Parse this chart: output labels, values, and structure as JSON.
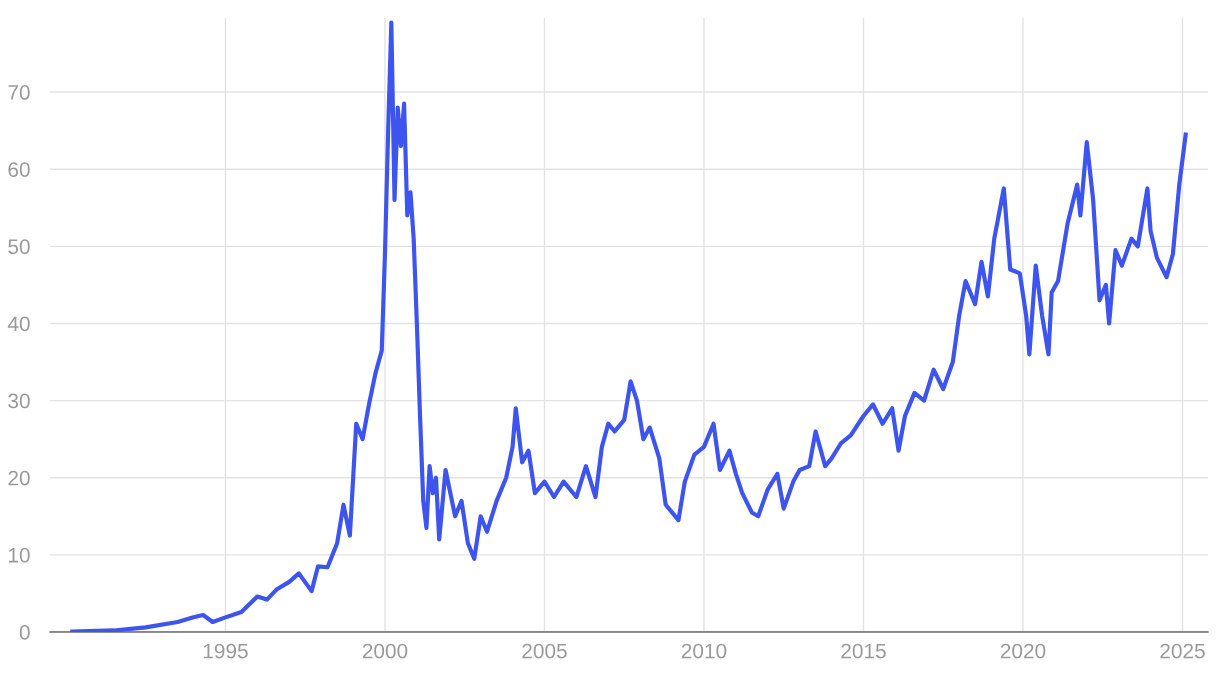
{
  "chart_data": {
    "type": "line",
    "grid": true,
    "xlim": [
      1989.5,
      2025.8
    ],
    "ylim": [
      0,
      79.6
    ],
    "xticks": [
      1995,
      2000,
      2005,
      2010,
      2015,
      2020,
      2025
    ],
    "yticks": [
      0,
      10,
      20,
      30,
      40,
      50,
      60,
      70
    ],
    "marker": "none",
    "line_style": "solid",
    "series": [
      {
        "color": "#3d55ee",
        "x": [
          1990.2,
          1991.5,
          1992.5,
          1993.5,
          1994.0,
          1994.3,
          1994.6,
          1995.0,
          1995.5,
          1996.0,
          1996.3,
          1996.6,
          1997.0,
          1997.3,
          1997.7,
          1997.9,
          1998.2,
          1998.5,
          1998.7,
          1998.9,
          1999.1,
          1999.3,
          1999.5,
          1999.7,
          1999.9,
          2000.0,
          2000.1,
          2000.2,
          2000.3,
          2000.4,
          2000.5,
          2000.6,
          2000.7,
          2000.8,
          2000.9,
          2001.0,
          2001.1,
          2001.2,
          2001.3,
          2001.4,
          2001.5,
          2001.6,
          2001.7,
          2001.9,
          2002.2,
          2002.4,
          2002.6,
          2002.8,
          2003.0,
          2003.2,
          2003.5,
          2003.8,
          2004.0,
          2004.1,
          2004.3,
          2004.5,
          2004.7,
          2005.0,
          2005.3,
          2005.6,
          2006.0,
          2006.3,
          2006.6,
          2006.8,
          2007.0,
          2007.2,
          2007.5,
          2007.7,
          2007.9,
          2008.1,
          2008.3,
          2008.6,
          2008.8,
          2009.0,
          2009.2,
          2009.4,
          2009.7,
          2010.0,
          2010.3,
          2010.5,
          2010.8,
          2011.0,
          2011.2,
          2011.5,
          2011.7,
          2012.0,
          2012.3,
          2012.5,
          2012.8,
          2013.0,
          2013.3,
          2013.5,
          2013.8,
          2014.0,
          2014.3,
          2014.6,
          2015.0,
          2015.3,
          2015.6,
          2015.9,
          2016.1,
          2016.3,
          2016.6,
          2016.9,
          2017.2,
          2017.5,
          2017.8,
          2018.0,
          2018.2,
          2018.5,
          2018.7,
          2018.9,
          2019.1,
          2019.4,
          2019.6,
          2019.9,
          2020.1,
          2020.2,
          2020.4,
          2020.6,
          2020.8,
          2020.9,
          2021.1,
          2021.4,
          2021.7,
          2021.8,
          2022.0,
          2022.2,
          2022.4,
          2022.6,
          2022.7,
          2022.9,
          2023.1,
          2023.4,
          2023.6,
          2023.9,
          2024.0,
          2024.2,
          2024.5,
          2024.7,
          2024.9,
          2025.1
        ],
        "values": [
          0.05,
          0.2,
          0.6,
          1.3,
          1.9,
          2.2,
          1.3,
          1.9,
          2.6,
          4.6,
          4.2,
          5.5,
          6.5,
          7.6,
          5.3,
          8.5,
          8.4,
          11.5,
          16.5,
          12.5,
          27.0,
          25.0,
          29.5,
          33.5,
          36.5,
          49.0,
          65.0,
          79.0,
          56.0,
          68.0,
          63.0,
          68.5,
          54.0,
          57.0,
          51.0,
          40.0,
          28.0,
          17.0,
          13.5,
          21.5,
          18.0,
          20.0,
          12.0,
          21.0,
          15.0,
          17.0,
          11.5,
          9.5,
          15.0,
          13.0,
          17.0,
          20.0,
          24.0,
          29.0,
          22.0,
          23.5,
          18.0,
          19.5,
          17.5,
          19.5,
          17.5,
          21.5,
          17.5,
          24.0,
          27.0,
          26.0,
          27.5,
          32.5,
          30.0,
          25.0,
          26.5,
          22.5,
          16.5,
          15.5,
          14.5,
          19.5,
          23.0,
          24.0,
          27.0,
          21.0,
          23.5,
          20.5,
          18.0,
          15.5,
          15.0,
          18.5,
          20.5,
          16.0,
          19.5,
          21.0,
          21.5,
          26.0,
          21.5,
          22.5,
          24.5,
          25.5,
          28.0,
          29.5,
          27.0,
          29.0,
          23.5,
          28.0,
          31.0,
          30.0,
          34.0,
          31.5,
          35.0,
          41.0,
          45.5,
          42.5,
          48.0,
          43.5,
          51.0,
          57.5,
          47.0,
          46.5,
          41.0,
          36.0,
          47.5,
          41.0,
          36.0,
          44.0,
          45.5,
          53.0,
          58.0,
          54.0,
          63.5,
          56.0,
          43.0,
          45.0,
          40.0,
          49.5,
          47.5,
          51.0,
          50.0,
          57.5,
          52.0,
          48.5,
          46.0,
          49.0,
          58.0,
          64.5
        ]
      }
    ]
  }
}
